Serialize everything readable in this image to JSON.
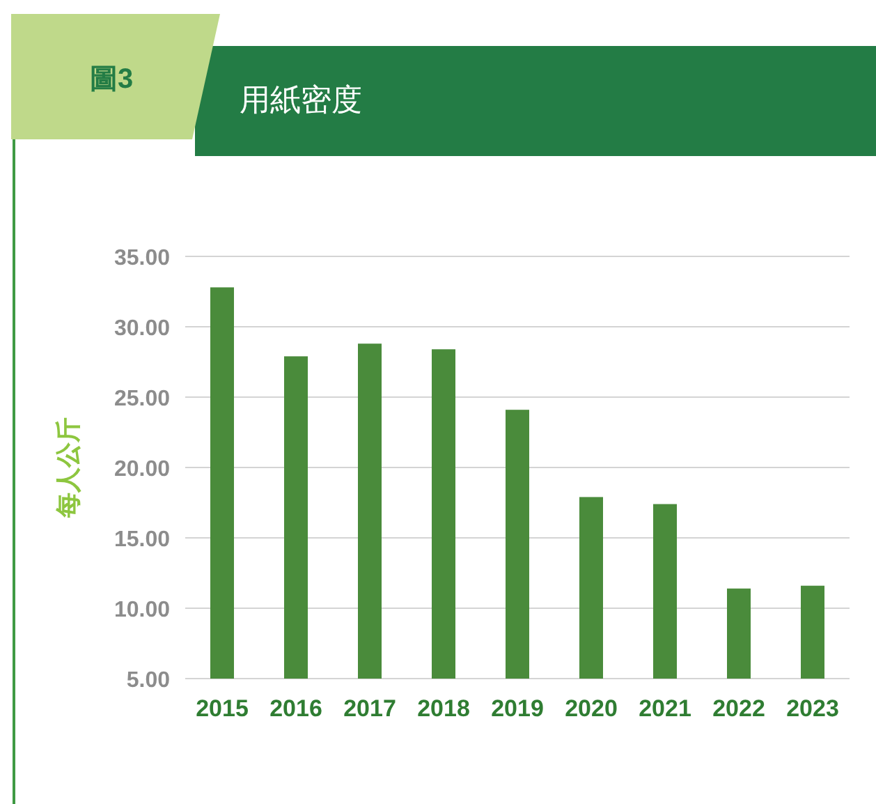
{
  "chart_data": {
    "type": "bar",
    "title": "用紙密度",
    "annotations": [
      "圖3"
    ],
    "ylabel": "每人公斤",
    "categories": [
      "2015",
      "2016",
      "2017",
      "2018",
      "2019",
      "2020",
      "2021",
      "2022",
      "2023"
    ],
    "values": [
      32.8,
      27.9,
      28.8,
      28.4,
      24.1,
      17.9,
      17.4,
      11.4,
      11.6
    ],
    "color": "#4a8b3b",
    "ylim": [
      5,
      35
    ],
    "yticks": [
      {
        "value": 5,
        "label": "5.00"
      },
      {
        "value": 10,
        "label": "10.00"
      },
      {
        "value": 15,
        "label": "15.00"
      },
      {
        "value": 20,
        "label": "20.00"
      },
      {
        "value": 25,
        "label": "25.00"
      },
      {
        "value": 30,
        "label": "30.00"
      },
      {
        "value": 35,
        "label": "35.00"
      }
    ],
    "grid": "y"
  }
}
